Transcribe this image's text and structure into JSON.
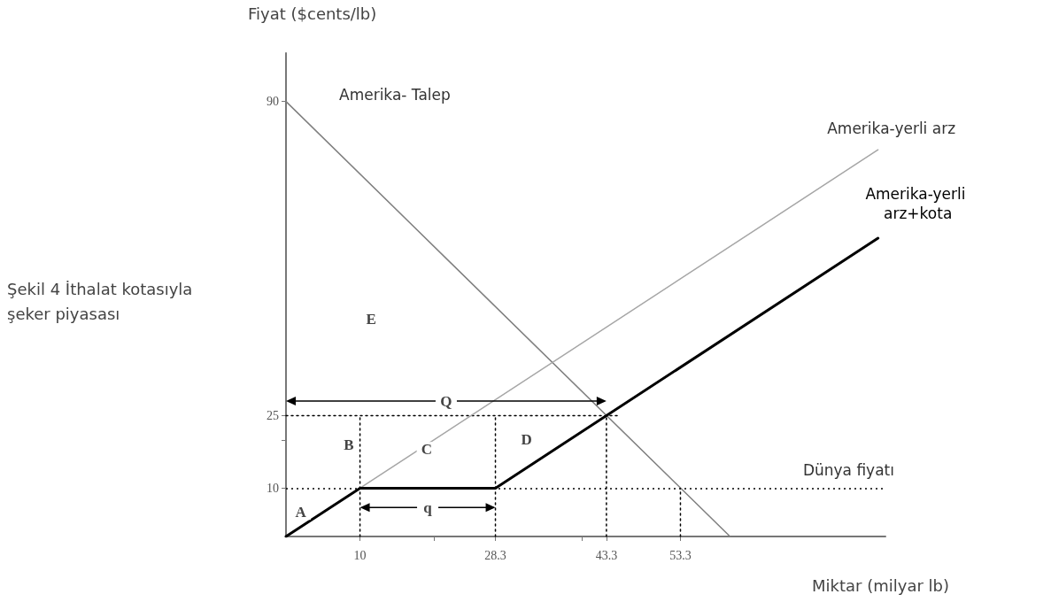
{
  "chart_data": {
    "type": "line",
    "title": "Şekil 4 İthalat kotasıyla şeker piyasası",
    "xlabel": "Miktar (milyar lb)",
    "ylabel": "Fiyat ($cents/lb)",
    "xlim": [
      0,
      81
    ],
    "ylim": [
      0,
      100
    ],
    "xticks": [
      10,
      {
        "value": 20,
        "label": null
      },
      28.3,
      {
        "value": 40,
        "label": null
      },
      43.3,
      53.3
    ],
    "yticks": [
      10,
      {
        "value": 20,
        "label": null
      },
      25,
      90
    ],
    "grid": false,
    "legend": false,
    "series": [
      {
        "name": "Amerika- Talep",
        "color": "#7f7f7f",
        "x": [
          0,
          60
        ],
        "values": [
          90,
          0
        ]
      },
      {
        "name": "Amerika-yerli arz",
        "color": "#a6a6a6",
        "x": [
          10,
          80
        ],
        "values": [
          10,
          80
        ]
      },
      {
        "name": "Amerika-yerli arz+kota",
        "color": "#000000",
        "x": [
          0,
          10,
          28.3,
          80
        ],
        "values": [
          0,
          10,
          10,
          61.7
        ]
      },
      {
        "color": "#000000",
        "line_style": "dotted",
        "x": [
          0,
          45
        ],
        "values": [
          25,
          25
        ]
      },
      {
        "color": "#000000",
        "line_style": "dotted",
        "x": [
          10,
          10
        ],
        "values": [
          0,
          25
        ]
      },
      {
        "color": "#000000",
        "line_style": "dotted",
        "x": [
          28.3,
          28.3
        ],
        "values": [
          0,
          25
        ]
      },
      {
        "color": "#000000",
        "line_style": "dotted",
        "x": [
          43.3,
          43.3
        ],
        "values": [
          0,
          25
        ]
      },
      {
        "color": "#000000",
        "line_style": "dotted",
        "x": [
          53.3,
          53.3
        ],
        "values": [
          0,
          10
        ]
      }
    ],
    "ref_lines": [
      {
        "axis": "y",
        "value": 10,
        "label": "Dünya fiyatı",
        "line_style": "dotted",
        "color": "#000000"
      }
    ],
    "annotations": [
      {
        "text": "A",
        "x": 2,
        "y": 5
      },
      {
        "text": "B",
        "x": 8.5,
        "y": 19
      },
      {
        "text": "C",
        "x": 19,
        "y": 18
      },
      {
        "text": "D",
        "x": 32.5,
        "y": 20
      },
      {
        "text": "E",
        "x": 11.5,
        "y": 45
      },
      {
        "text": "Q",
        "x": 21.65,
        "y": 28
      },
      {
        "text": "q",
        "x": 19.15,
        "y": 6
      }
    ]
  }
}
